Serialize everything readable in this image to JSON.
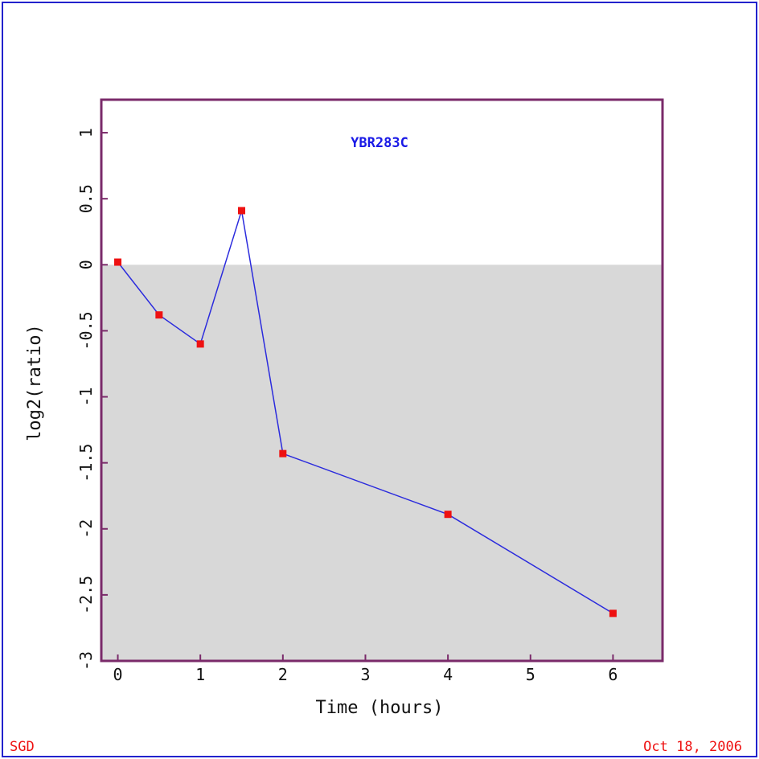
{
  "chart_data": {
    "type": "line",
    "title": "YBR283C",
    "xlabel": "Time (hours)",
    "ylabel": "log2(ratio)",
    "xlim": [
      -0.2,
      6.6
    ],
    "ylim": [
      -3,
      1.25
    ],
    "x_ticks": [
      0,
      1,
      2,
      3,
      4,
      5,
      6
    ],
    "x_tick_labels": [
      "0",
      "1",
      "2",
      "3",
      "4",
      "5",
      "6"
    ],
    "y_ticks": [
      -3,
      -2.5,
      -2,
      -1.5,
      -1,
      -0.5,
      0,
      0.5,
      1
    ],
    "y_tick_labels": [
      "-3",
      "-2.5",
      "-2",
      "-1.5",
      "-1",
      "-0.5",
      "0",
      "0.5",
      "1"
    ],
    "grid": false,
    "shade_below": 0,
    "series": [
      {
        "x": [
          0,
          0.5,
          1,
          1.5,
          2,
          4,
          6
        ],
        "y": [
          0.02,
          -0.38,
          -0.6,
          0.41,
          -1.43,
          -1.89,
          -2.64
        ]
      }
    ]
  },
  "footer": {
    "left": "SGD",
    "right": "Oct 18, 2006"
  },
  "colors": {
    "page_border": "#2222cc",
    "plot_border": "#7a2a6a",
    "shade": "#d8d8d8",
    "line": "#2b2bdd",
    "marker": "#ee1111",
    "title": "#1a1ae6",
    "footer": "#ee1111",
    "text": "#111111"
  }
}
